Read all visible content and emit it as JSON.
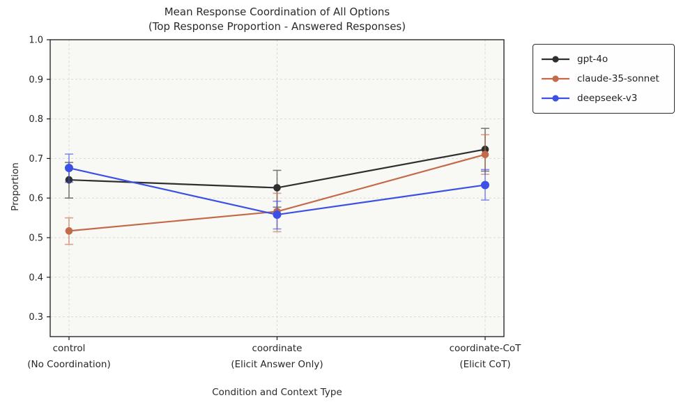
{
  "figure": {
    "title_line1": "Mean Response Coordination of All Options",
    "title_line2": "(Top Response Proportion - Answered Responses)"
  },
  "chart_data": {
    "type": "line",
    "title": "Mean Response Coordination of All Options\n(Top Response Proportion - Answered Responses)",
    "xlabel": "Condition and Context Type",
    "ylabel": "Proportion",
    "categories": [
      {
        "label": "control",
        "sublabel": "(No Coordination)"
      },
      {
        "label": "coordinate",
        "sublabel": "(Elicit Answer Only)"
      },
      {
        "label": "coordinate-CoT",
        "sublabel": "(Elicit CoT)"
      }
    ],
    "ylim": [
      0.25,
      1.0
    ],
    "yticks": [
      0.3,
      0.4,
      0.5,
      0.6,
      0.7,
      0.8,
      0.9,
      1.0
    ],
    "grid": "dashed-both-axes",
    "legend_position": "outside-top-right",
    "error_bars": true,
    "series": [
      {
        "name": "gpt-4o",
        "color": "#2f2f2f",
        "values": [
          0.646,
          0.626,
          0.723
        ],
        "err_low": [
          0.6,
          0.577,
          0.668
        ],
        "err_high": [
          0.69,
          0.67,
          0.776
        ]
      },
      {
        "name": "claude-35-sonnet",
        "color": "#c26a4a",
        "values": [
          0.517,
          0.566,
          0.71
        ],
        "err_low": [
          0.483,
          0.515,
          0.66
        ],
        "err_high": [
          0.55,
          0.612,
          0.76
        ]
      },
      {
        "name": "deepseek-v3",
        "color": "#3c50e6",
        "values": [
          0.676,
          0.558,
          0.633
        ],
        "err_low": [
          0.64,
          0.522,
          0.595
        ],
        "err_high": [
          0.711,
          0.592,
          0.672
        ]
      }
    ]
  },
  "style": {
    "plot_bg": "#f8f8f5",
    "grid_color": "#d9d9d9",
    "spine_color": "#1a1a1a",
    "tick_label_color": "#262626"
  }
}
